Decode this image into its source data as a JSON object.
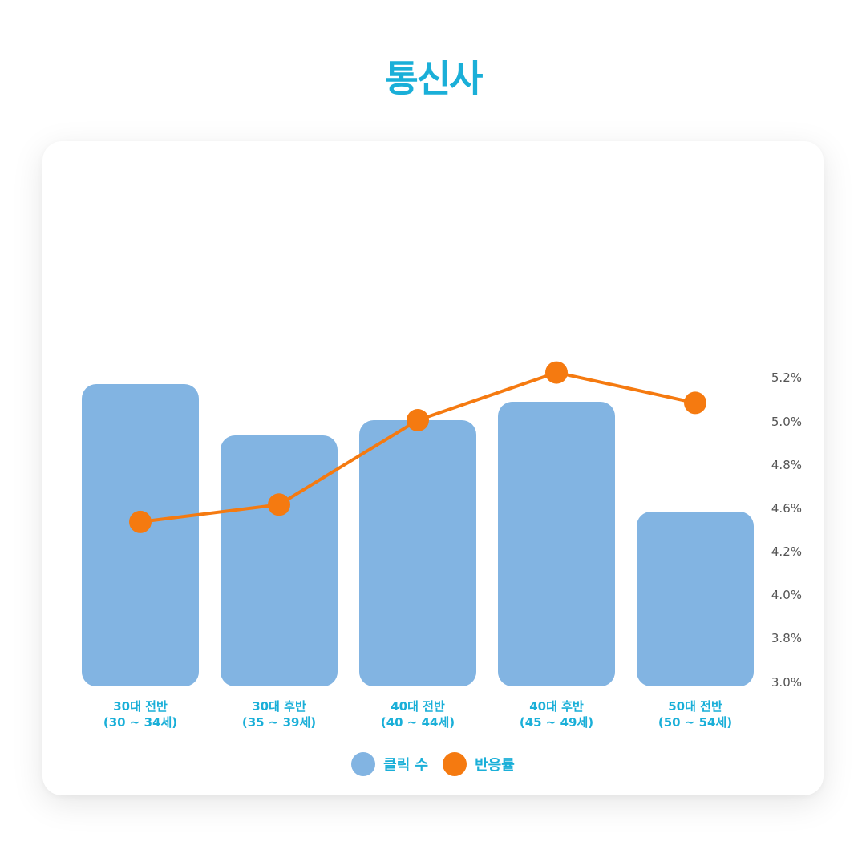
{
  "colors": {
    "title": "#1AAFD8",
    "bar": "#82B4E2",
    "line": "#F57A10",
    "category_text": "#1AAFD8",
    "tick_text": "#555555"
  },
  "title": "통신사",
  "chart_data": {
    "type": "bar",
    "title": "통신사",
    "categories": [
      [
        "30대 전반",
        "(30 ~ 34세)"
      ],
      [
        "30대 후반",
        "(35 ~ 39세)"
      ],
      [
        "40대 전반",
        "(40 ~ 44세)"
      ],
      [
        "40대 후반",
        "(45 ~ 49세)"
      ],
      [
        "50대 전반",
        "(50 ~ 54세)"
      ]
    ],
    "series": [
      {
        "name": "클릭 수",
        "type": "bar",
        "values": [
          377,
          313,
          332,
          355,
          218
        ]
      },
      {
        "name": "반응률",
        "type": "line",
        "values": [
          4.53,
          4.61,
          5.0,
          5.22,
          5.08
        ]
      }
    ],
    "right_axis": {
      "ticks": [
        "5.2%",
        "5.0%",
        "4.8%",
        "4.6%",
        "4.2%",
        "4.0%",
        "3.8%",
        "3.0%"
      ]
    },
    "legend": [
      "클릭 수",
      "반응률"
    ],
    "legend_position": "bottom"
  }
}
